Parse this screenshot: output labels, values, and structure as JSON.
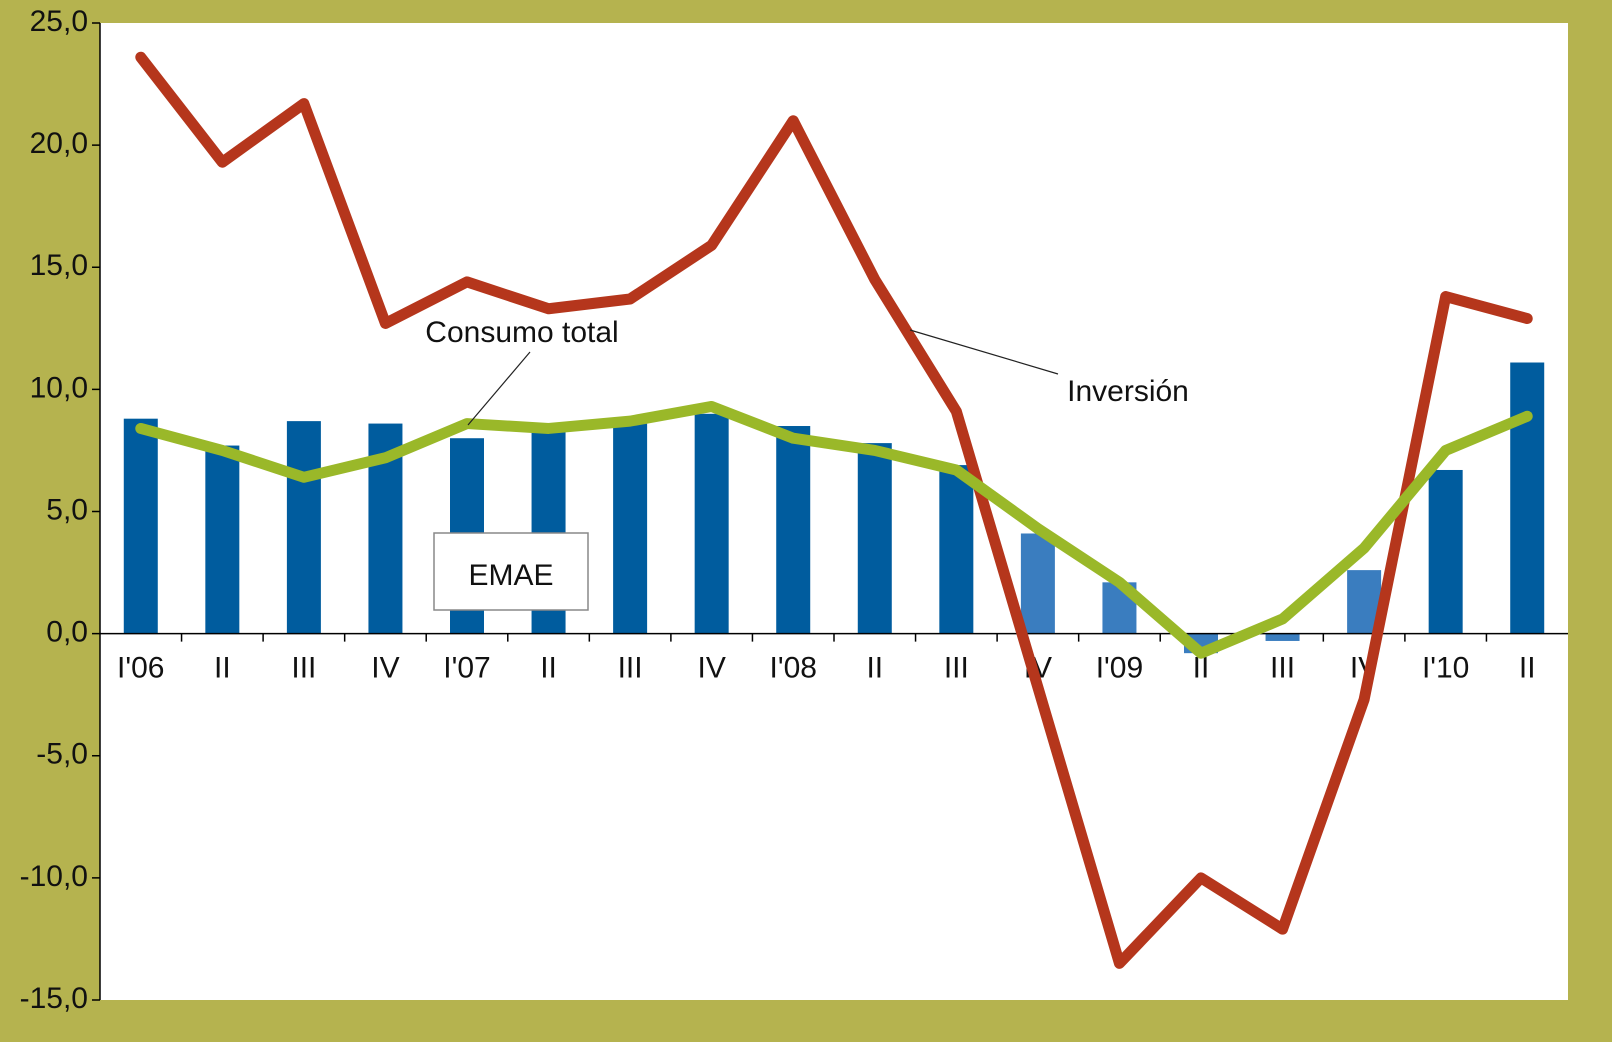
{
  "chart_data": {
    "type": "bar",
    "categories": [
      "I'06",
      "II",
      "III",
      "IV",
      "I'07",
      "II",
      "III",
      "IV",
      "I'08",
      "II",
      "III",
      "IV",
      "I'09",
      "II",
      "III",
      "IV",
      "I'10",
      "II"
    ],
    "series": [
      {
        "name": "EMAE",
        "type": "bar",
        "color": "#005c9e",
        "colors": [
          "#005c9e",
          "#005c9e",
          "#005c9e",
          "#005c9e",
          "#005c9e",
          "#005c9e",
          "#005c9e",
          "#005c9e",
          "#005c9e",
          "#005c9e",
          "#005c9e",
          "#3a7dbf",
          "#3a7dbf",
          "#3a7dbf",
          "#3a7dbf",
          "#3a7dbf",
          "#005c9e",
          "#005c9e"
        ],
        "values": [
          8.8,
          7.7,
          8.7,
          8.6,
          8.0,
          8.3,
          8.6,
          9.0,
          8.5,
          7.8,
          6.9,
          4.1,
          2.1,
          -0.8,
          -0.3,
          2.6,
          6.7,
          11.1
        ]
      },
      {
        "name": "Consumo total",
        "type": "line",
        "color": "#9ab829",
        "values": [
          8.4,
          7.5,
          6.4,
          7.2,
          8.6,
          8.4,
          8.7,
          9.3,
          8.0,
          7.5,
          6.7,
          4.3,
          2.1,
          -0.8,
          0.6,
          3.5,
          7.5,
          8.9
        ]
      },
      {
        "name": "Inversión",
        "type": "line",
        "color": "#b5361c",
        "values": [
          23.6,
          19.3,
          21.7,
          12.7,
          14.4,
          13.3,
          13.7,
          15.9,
          21.0,
          14.5,
          9.1,
          -2.2,
          -13.5,
          -10.0,
          -12.1,
          -2.7,
          13.8,
          12.9
        ]
      }
    ],
    "ylim": [
      -15,
      25
    ],
    "yticks": [
      {
        "value": -15,
        "label": "-15,0"
      },
      {
        "value": -10,
        "label": "-10,0"
      },
      {
        "value": -5,
        "label": "-5,0"
      },
      {
        "value": 0,
        "label": "0,0"
      },
      {
        "value": 5,
        "label": "5,0"
      },
      {
        "value": 10,
        "label": "10,0"
      },
      {
        "value": 15,
        "label": "15,0"
      },
      {
        "value": 20,
        "label": "20,0"
      },
      {
        "value": 25,
        "label": "25,0"
      }
    ],
    "grid": false
  }
}
